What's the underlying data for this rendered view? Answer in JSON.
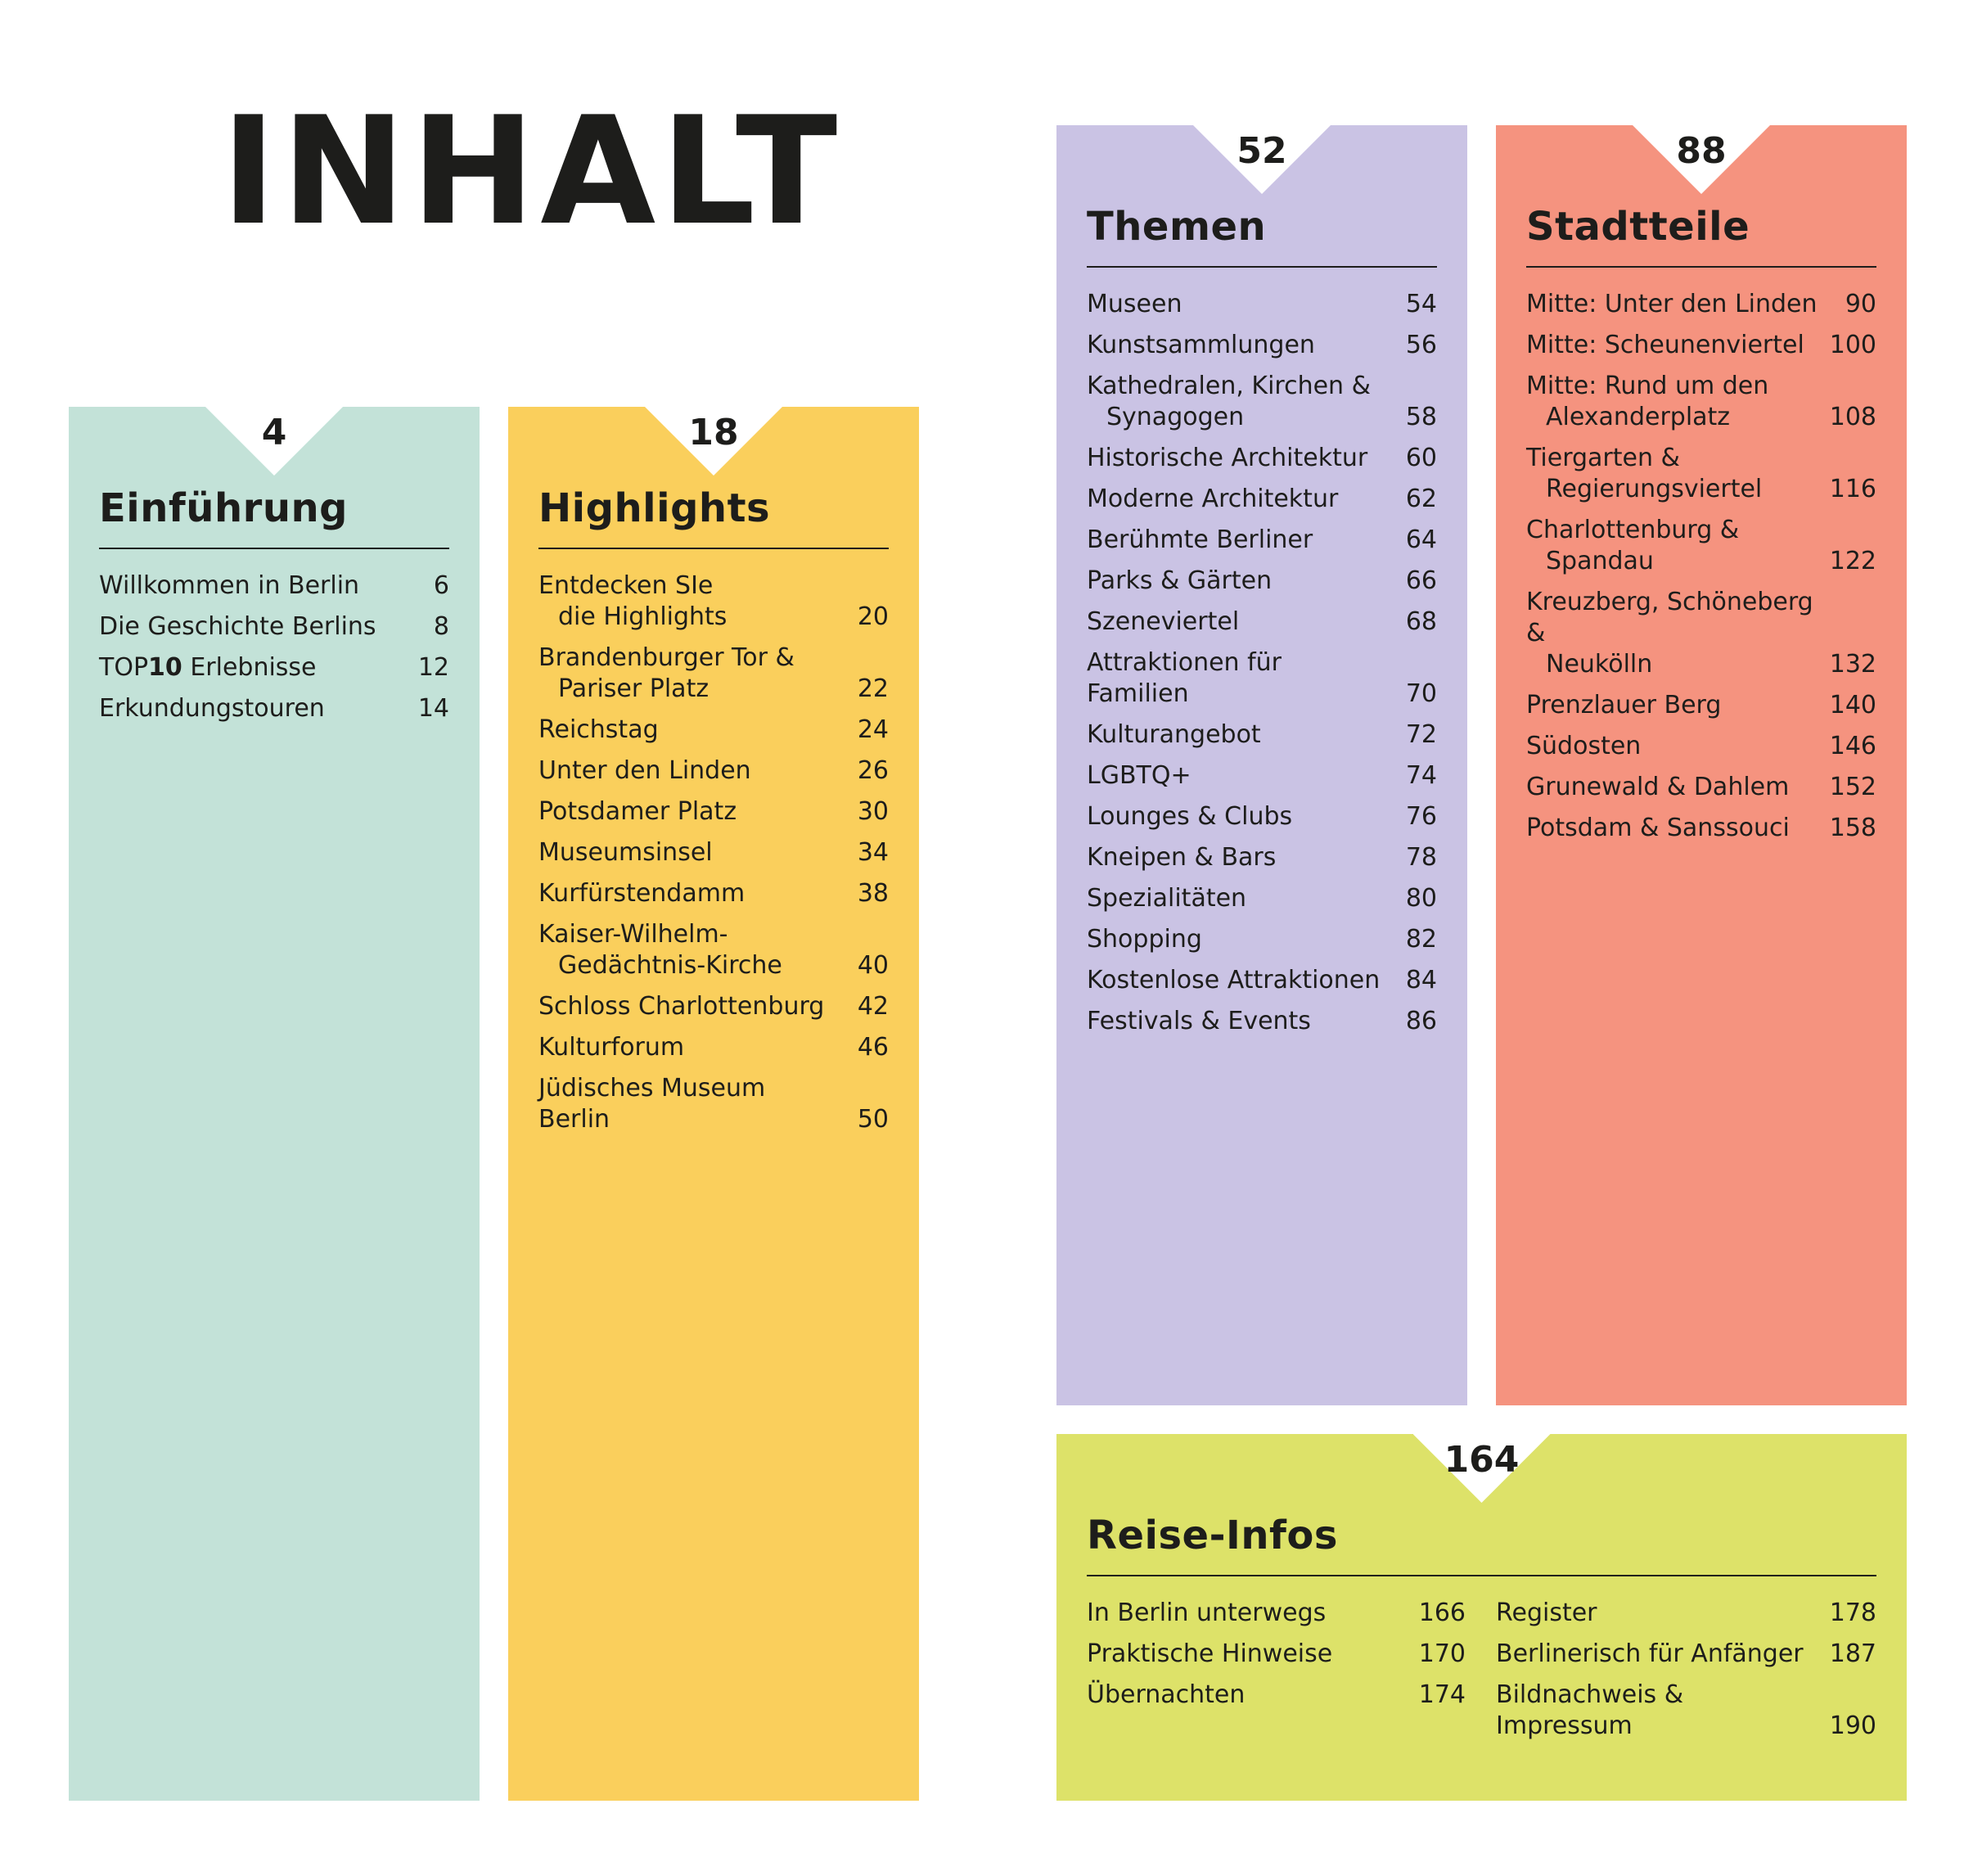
{
  "title": "INHALT",
  "colors": {
    "einfuehrung": "#c3e2d8",
    "highlights": "#facf5c",
    "themen": "#cac3e4",
    "stadtteile": "#f5937f",
    "reise": "#dde269",
    "text": "#1d1d1b"
  },
  "einfuehrung": {
    "page": "4",
    "title": "Einführung",
    "items": [
      {
        "label": "Willkommen in Berlin",
        "page": "6"
      },
      {
        "label": "Die Geschichte Berlins",
        "page": "8"
      },
      {
        "label_prefix": "TOP",
        "label_bold": "10",
        "label_suffix": " Erlebnisse",
        "page": "12"
      },
      {
        "label": "Erkundungstouren",
        "page": "14"
      }
    ]
  },
  "highlights": {
    "page": "18",
    "title": "Highlights",
    "items": [
      {
        "line1": "Entdecken SIe",
        "line2": "die Highlights",
        "page": "20"
      },
      {
        "line1": "Brandenburger Tor &",
        "line2": "Pariser Platz",
        "page": "22"
      },
      {
        "line1": "Reichstag",
        "page": "24"
      },
      {
        "line1": "Unter den Linden",
        "page": "26"
      },
      {
        "line1": "Potsdamer Platz",
        "page": "30"
      },
      {
        "line1": "Museumsinsel",
        "page": "34"
      },
      {
        "line1": "Kurfürstendamm",
        "page": "38"
      },
      {
        "line1": "Kaiser-Wilhelm-",
        "line2": "Gedächtnis-Kirche",
        "page": "40"
      },
      {
        "line1": "Schloss Charlottenburg",
        "page": "42"
      },
      {
        "line1": "Kulturforum",
        "page": "46"
      },
      {
        "line1": "Jüdisches Museum Berlin",
        "page": "50"
      }
    ]
  },
  "themen": {
    "page": "52",
    "title": "Themen",
    "items": [
      {
        "line1": "Museen",
        "page": "54"
      },
      {
        "line1": "Kunstsammlungen",
        "page": "56"
      },
      {
        "line1": "Kathedralen, Kirchen &",
        "line2": "Synagogen",
        "page": "58"
      },
      {
        "line1": "Historische Architektur",
        "page": "60"
      },
      {
        "line1": "Moderne Architektur",
        "page": "62"
      },
      {
        "line1": "Berühmte Berliner",
        "page": "64"
      },
      {
        "line1": "Parks & Gärten",
        "page": "66"
      },
      {
        "line1": "Szeneviertel",
        "page": "68"
      },
      {
        "line1": "Attraktionen für Familien",
        "page": "70"
      },
      {
        "line1": "Kulturangebot",
        "page": "72"
      },
      {
        "line1": "LGBTQ+",
        "page": "74"
      },
      {
        "line1": "Lounges & Clubs",
        "page": "76"
      },
      {
        "line1": "Kneipen & Bars",
        "page": "78"
      },
      {
        "line1": "Spezialitäten",
        "page": "80"
      },
      {
        "line1": "Shopping",
        "page": "82"
      },
      {
        "line1": "Kostenlose Attraktionen",
        "page": "84"
      },
      {
        "line1": "Festivals & Events",
        "page": "86"
      }
    ]
  },
  "stadtteile": {
    "page": "88",
    "title": "Stadtteile",
    "items": [
      {
        "line1": "Mitte: Unter den Linden",
        "page": "90"
      },
      {
        "line1": "Mitte: Scheunenviertel",
        "page": "100"
      },
      {
        "line1": "Mitte: Rund um den",
        "line2": "Alexanderplatz",
        "page": "108"
      },
      {
        "line1": "Tiergarten &",
        "line2": "Regierungsviertel",
        "page": "116"
      },
      {
        "line1": "Charlottenburg &",
        "line2": "Spandau",
        "page": "122"
      },
      {
        "line1": "Kreuzberg, Schöneberg &",
        "line2": "Neukölln",
        "page": "132"
      },
      {
        "line1": "Prenzlauer Berg",
        "page": "140"
      },
      {
        "line1": "Südosten",
        "page": "146"
      },
      {
        "line1": "Grunewald & Dahlem",
        "page": "152"
      },
      {
        "line1": "Potsdam & Sanssouci",
        "page": "158"
      }
    ]
  },
  "reise": {
    "page": "164",
    "title": "Reise-Infos",
    "left": [
      {
        "line1": "In Berlin unterwegs",
        "page": "166"
      },
      {
        "line1": "Praktische Hinweise",
        "page": "170"
      },
      {
        "line1": "Übernachten",
        "page": "174"
      }
    ],
    "right": [
      {
        "line1": "Register",
        "page": "178"
      },
      {
        "line1": "Berlinerisch für Anfänger",
        "page": "187"
      },
      {
        "line1": "Bildnachweis & Impressum",
        "page": "190"
      }
    ]
  }
}
